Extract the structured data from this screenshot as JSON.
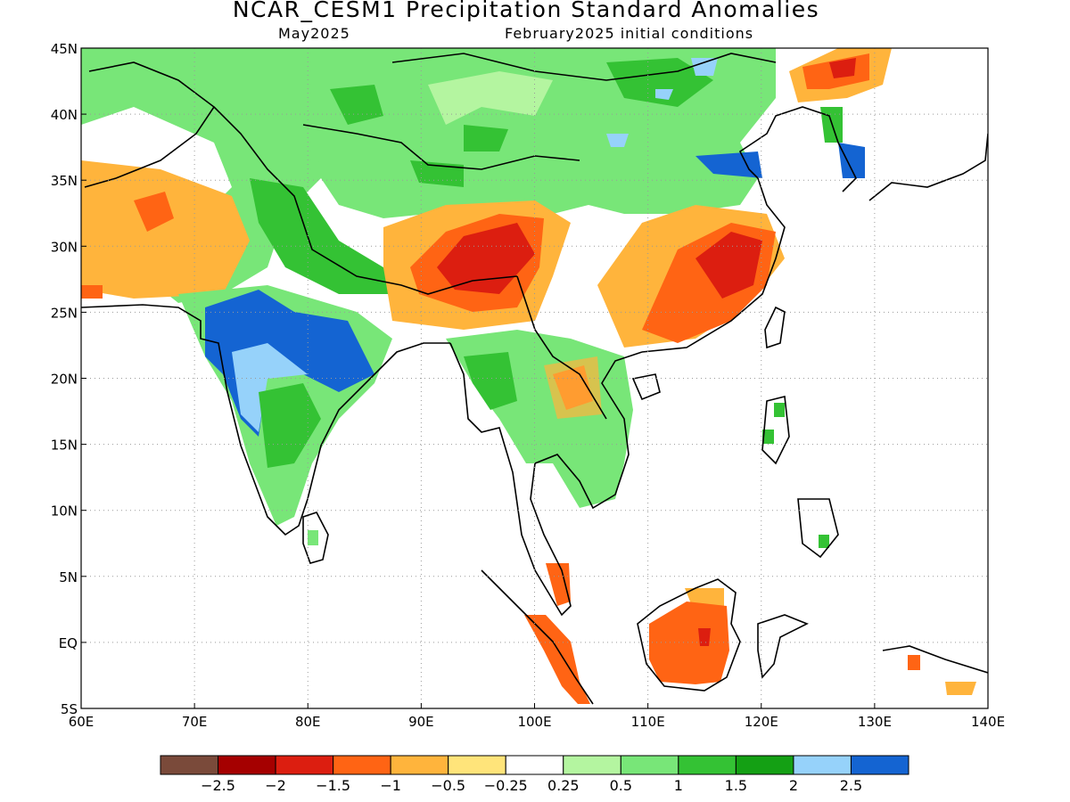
{
  "title": "NCAR_CESM1 Precipitation Standard Anomalies",
  "subtitle_left": "May2025",
  "subtitle_right": "February2025 initial conditions",
  "axes": {
    "lon_ticks": [
      "60E",
      "70E",
      "80E",
      "90E",
      "100E",
      "110E",
      "120E",
      "130E",
      "140E"
    ],
    "lat_ticks": [
      "45N",
      "40N",
      "35N",
      "30N",
      "25N",
      "20N",
      "15N",
      "10N",
      "5N",
      "EQ",
      "5S"
    ],
    "lon_range": [
      60,
      140
    ],
    "lat_range": [
      -5,
      45
    ],
    "grid": "dotted"
  },
  "colorbar": {
    "labels": [
      "−2.5",
      "−2",
      "−1.5",
      "−1",
      "−0.5",
      "−0.25",
      "0.25",
      "0.5",
      "1",
      "1.5",
      "2",
      "2.5"
    ],
    "colors": [
      "#7a4a3a",
      "#a50000",
      "#dc1e10",
      "#ff6414",
      "#ffb43c",
      "#ffe47a",
      "#ffffff",
      "#b4f5a0",
      "#78e678",
      "#34c234",
      "#14a014",
      "#96d2fa",
      "#1464d2"
    ]
  },
  "map_layers": {
    "colors": {
      "green_light": "#b4f5a0",
      "green_mid": "#78e678",
      "green_med": "#34c234",
      "green_dark": "#14a014",
      "blue_light": "#96d2fa",
      "blue_dark": "#1464d2",
      "yellow": "#ffe47a",
      "orange_light": "#ffb43c",
      "orange": "#ff6414",
      "red": "#dc1e10",
      "dark_red": "#a50000",
      "coast": "#000000"
    }
  }
}
